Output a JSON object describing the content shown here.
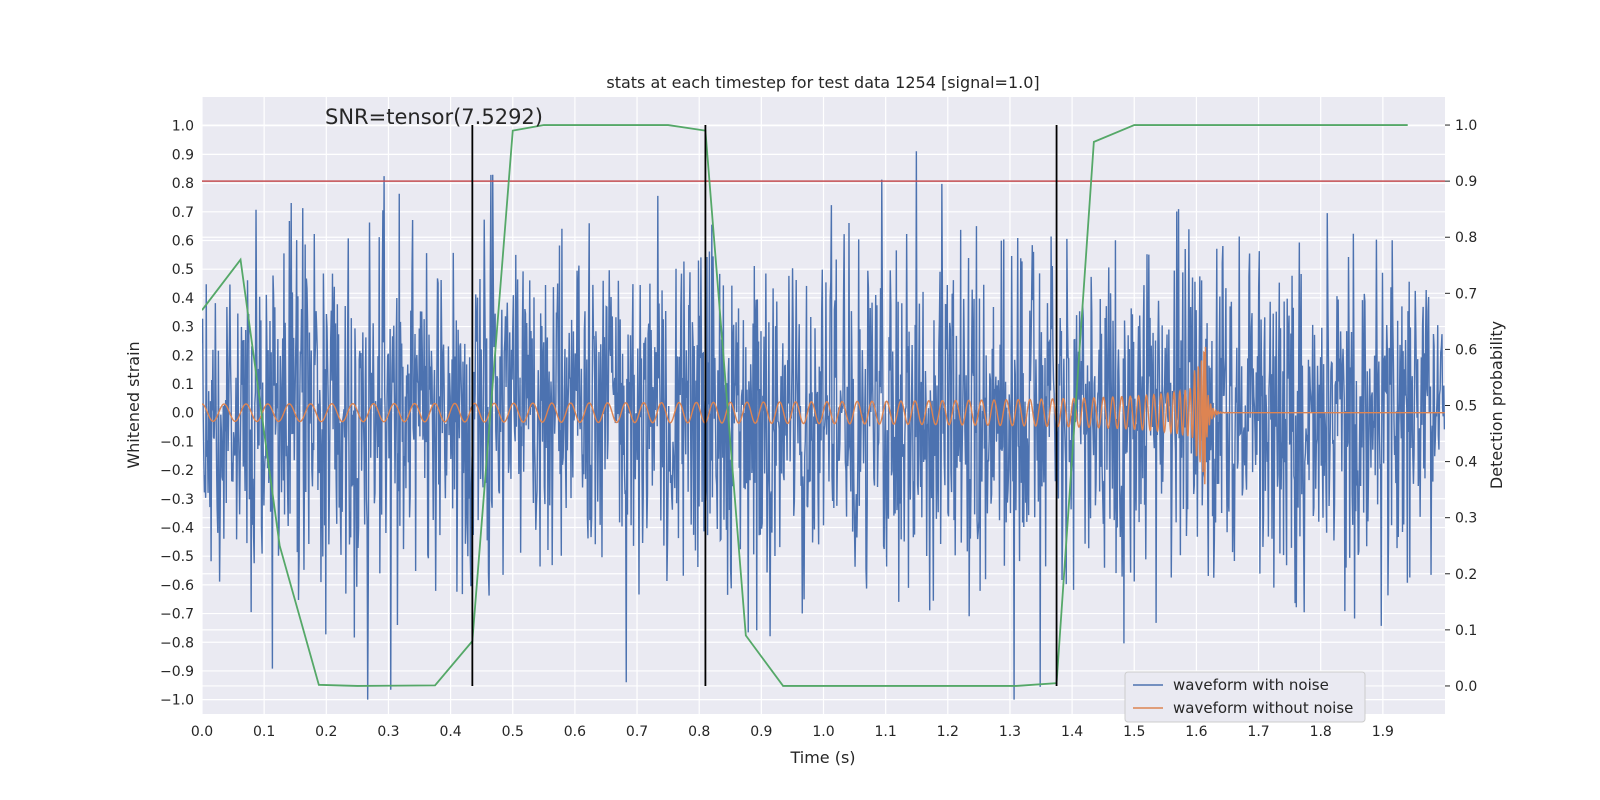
{
  "chart_data": {
    "type": "line",
    "title": "stats at each timestep for test data 1254 [signal=1.0]",
    "xlabel": "Time (s)",
    "ylabel": "Whitened strain",
    "y2label": "Detection probability",
    "xlim": [
      0.0,
      2.0
    ],
    "ylim": [
      -1.05,
      1.1
    ],
    "y2lim": [
      -0.05,
      1.05
    ],
    "x_ticks": [
      "0.0",
      "0.1",
      "0.2",
      "0.3",
      "0.4",
      "0.5",
      "0.6",
      "0.7",
      "0.8",
      "0.9",
      "1.0",
      "1.1",
      "1.2",
      "1.3",
      "1.4",
      "1.5",
      "1.6",
      "1.7",
      "1.8",
      "1.9"
    ],
    "y_ticks": [
      "1.0",
      "0.9",
      "0.8",
      "0.7",
      "0.6",
      "0.5",
      "0.4",
      "0.3",
      "0.2",
      "0.1",
      "0.0",
      "−0.1",
      "−0.2",
      "−0.3",
      "−0.4",
      "−0.5",
      "−0.6",
      "−0.7",
      "−0.8",
      "−0.9",
      "−1.0"
    ],
    "y2_ticks": [
      "1.0",
      "0.9",
      "0.8",
      "0.7",
      "0.6",
      "0.5",
      "0.4",
      "0.3",
      "0.2",
      "0.1",
      "0.0"
    ],
    "annotation": "SNR=tensor(7.5292)",
    "threshold_line": {
      "y2": 0.9,
      "color": "#c44e52"
    },
    "vertical_lines": {
      "x": [
        0.435,
        0.81,
        1.375
      ],
      "y2_range": [
        0.0,
        1.0
      ],
      "color": "#000000"
    },
    "grid": true,
    "legend_position": "lower-right",
    "series": [
      {
        "name": "waveform with noise",
        "color": "#4c72b0",
        "axis": "left",
        "kind": "noise",
        "approx_std": 0.3,
        "approx_range": [
          -1.0,
          1.0
        ]
      },
      {
        "name": "waveform without noise",
        "color": "#dd8452",
        "axis": "left",
        "kind": "chirp",
        "merger_time": 1.615,
        "start_amplitude": 0.03,
        "peak_amplitude": 0.3
      },
      {
        "name": "",
        "color": "#55a868",
        "axis": "right",
        "kind": "probability",
        "x": [
          0.0,
          0.062,
          0.125,
          0.188,
          0.25,
          0.375,
          0.435,
          0.5,
          0.55,
          0.75,
          0.81,
          0.875,
          0.935,
          1.0,
          1.31,
          1.375,
          1.435,
          1.5,
          1.94
        ],
        "y": [
          0.67,
          0.76,
          0.25,
          0.002,
          0.0,
          0.001,
          0.08,
          0.99,
          1.0,
          1.0,
          0.99,
          0.09,
          0.0,
          0.0,
          0.0,
          0.005,
          0.97,
          1.0,
          1.0
        ]
      }
    ]
  }
}
